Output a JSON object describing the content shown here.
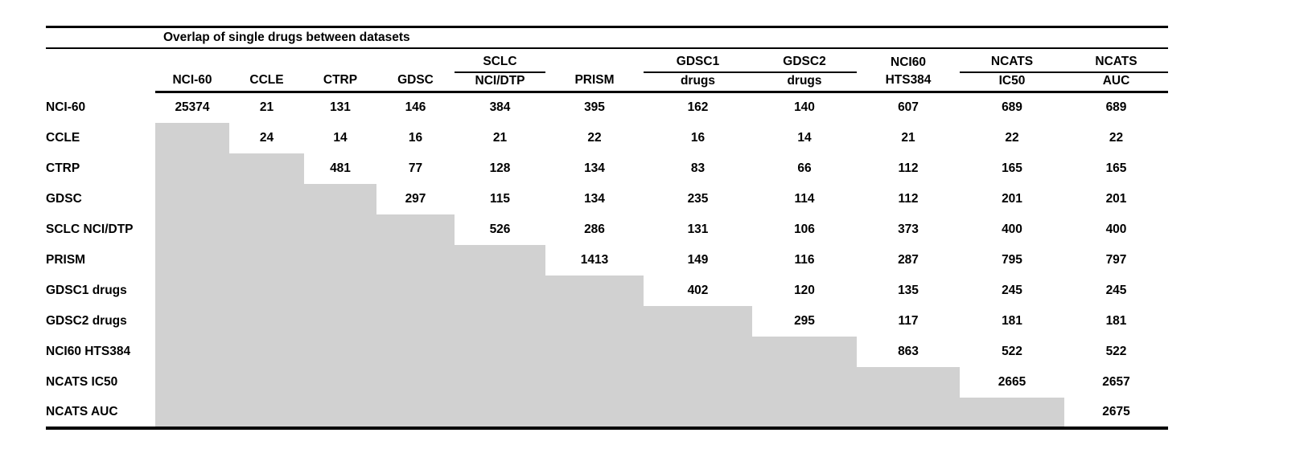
{
  "colors": {
    "mask_gray": "#d1d1d1",
    "text": "#000000",
    "background": "#ffffff"
  },
  "table": {
    "title": "Overlap of single drugs between datasets",
    "columns": [
      {
        "group": "",
        "label": "NCI-60"
      },
      {
        "group": "",
        "label": "CCLE"
      },
      {
        "group": "",
        "label": "CTRP"
      },
      {
        "group": "",
        "label": "GDSC"
      },
      {
        "group": "SCLC",
        "label": "NCI/DTP"
      },
      {
        "group": "",
        "label": "PRISM"
      },
      {
        "group": "GDSC1",
        "label": "drugs"
      },
      {
        "group": "GDSC2",
        "label": "drugs"
      },
      {
        "group": "NCI60",
        "label": "HTS384"
      },
      {
        "group": "NCATS",
        "label": "IC50"
      },
      {
        "group": "NCATS",
        "label": "AUC"
      }
    ],
    "rows": [
      {
        "label": "NCI-60",
        "values": [
          25374,
          21,
          131,
          146,
          384,
          395,
          162,
          140,
          607,
          689,
          689
        ]
      },
      {
        "label": "CCLE",
        "values": [
          null,
          24,
          14,
          16,
          21,
          22,
          16,
          14,
          21,
          22,
          22
        ]
      },
      {
        "label": "CTRP",
        "values": [
          null,
          null,
          481,
          77,
          128,
          134,
          83,
          66,
          112,
          165,
          165
        ]
      },
      {
        "label": "GDSC",
        "values": [
          null,
          null,
          null,
          297,
          115,
          134,
          235,
          114,
          112,
          201,
          201
        ]
      },
      {
        "label": "SCLC NCI/DTP",
        "values": [
          null,
          null,
          null,
          null,
          526,
          286,
          131,
          106,
          373,
          400,
          400
        ]
      },
      {
        "label": "PRISM",
        "values": [
          null,
          null,
          null,
          null,
          null,
          1413,
          149,
          116,
          287,
          795,
          797
        ]
      },
      {
        "label": "GDSC1 drugs",
        "values": [
          null,
          null,
          null,
          null,
          null,
          null,
          402,
          120,
          135,
          245,
          245
        ]
      },
      {
        "label": "GDSC2 drugs",
        "values": [
          null,
          null,
          null,
          null,
          null,
          null,
          null,
          295,
          117,
          181,
          181
        ]
      },
      {
        "label": "NCI60 HTS384",
        "values": [
          null,
          null,
          null,
          null,
          null,
          null,
          null,
          null,
          863,
          522,
          522
        ]
      },
      {
        "label": "NCATS IC50",
        "values": [
          null,
          null,
          null,
          null,
          null,
          null,
          null,
          null,
          null,
          2665,
          2657
        ]
      },
      {
        "label": "NCATS AUC",
        "values": [
          null,
          null,
          null,
          null,
          null,
          null,
          null,
          null,
          null,
          null,
          2675
        ]
      }
    ]
  },
  "chart_data": {
    "type": "table",
    "title": "Overlap of single drugs between datasets",
    "columns": [
      "NCI-60",
      "CCLE",
      "CTRP",
      "GDSC",
      "SCLC NCI/DTP",
      "PRISM",
      "GDSC1 drugs",
      "GDSC2 drugs",
      "NCI60 HTS384",
      "NCATS IC50",
      "NCATS AUC"
    ],
    "row_labels": [
      "NCI-60",
      "CCLE",
      "CTRP",
      "GDSC",
      "SCLC NCI/DTP",
      "PRISM",
      "GDSC1 drugs",
      "GDSC2 drugs",
      "NCI60 HTS384",
      "NCATS IC50",
      "NCATS AUC"
    ],
    "matrix": [
      [
        25374,
        21,
        131,
        146,
        384,
        395,
        162,
        140,
        607,
        689,
        689
      ],
      [
        null,
        24,
        14,
        16,
        21,
        22,
        16,
        14,
        21,
        22,
        22
      ],
      [
        null,
        null,
        481,
        77,
        128,
        134,
        83,
        66,
        112,
        165,
        165
      ],
      [
        null,
        null,
        null,
        297,
        115,
        134,
        235,
        114,
        112,
        201,
        201
      ],
      [
        null,
        null,
        null,
        null,
        526,
        286,
        131,
        106,
        373,
        400,
        400
      ],
      [
        null,
        null,
        null,
        null,
        null,
        1413,
        149,
        116,
        287,
        795,
        797
      ],
      [
        null,
        null,
        null,
        null,
        null,
        null,
        402,
        120,
        135,
        245,
        245
      ],
      [
        null,
        null,
        null,
        null,
        null,
        null,
        null,
        295,
        117,
        181,
        181
      ],
      [
        null,
        null,
        null,
        null,
        null,
        null,
        null,
        null,
        863,
        522,
        522
      ],
      [
        null,
        null,
        null,
        null,
        null,
        null,
        null,
        null,
        null,
        2665,
        2657
      ],
      [
        null,
        null,
        null,
        null,
        null,
        null,
        null,
        null,
        null,
        null,
        2675
      ]
    ],
    "layout": "upper-triangular matrix; lower-triangle cells filled gray; diagonal holds per-dataset totals; grid off except horizontal rules"
  }
}
